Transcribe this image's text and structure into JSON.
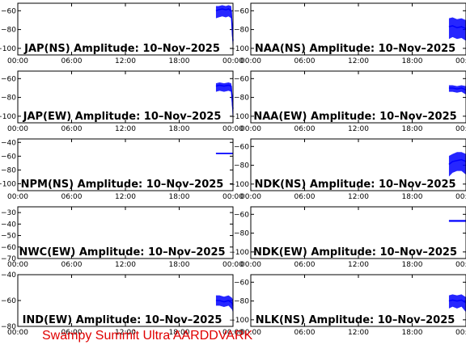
{
  "footer_text": "Swampy Summit Ultra AARDDVARK",
  "chart_data": [
    {
      "type": "line",
      "title": "JAP(NS) Amplitude: 10–Nov–2025",
      "x_ticks": [
        "00:00",
        "06:00",
        "12:00",
        "18:00",
        "00:00"
      ],
      "xlim": [
        0,
        24
      ],
      "yticks": [
        -100,
        -80,
        -60
      ],
      "ylim": [
        -107,
        -52
      ],
      "color": "#0000ff",
      "series": [
        {
          "x": [
            22.1,
            22.4,
            22.8,
            23.2,
            23.5,
            23.8,
            23.95,
            24.0
          ],
          "y": [
            -60,
            -59,
            -58,
            -59,
            -58,
            -60,
            -86,
            -92
          ],
          "low": [
            -68,
            -67,
            -66,
            -67,
            -66,
            -68,
            -96,
            -98
          ],
          "high": [
            -55,
            -55,
            -54,
            -55,
            -54,
            -55,
            -80,
            -86
          ]
        }
      ]
    },
    {
      "type": "line",
      "title": "NAA(NS) Amplitude: 10–Nov–2025",
      "x_ticks": [
        "00:00",
        "06:00",
        "12:00",
        "18:00",
        "00:00"
      ],
      "xlim": [
        0,
        24
      ],
      "yticks": [
        -100,
        -80,
        -60
      ],
      "ylim": [
        -107,
        -52
      ],
      "color": "#0000ff",
      "series": [
        {
          "x": [
            22.1,
            22.5,
            23.0,
            23.5,
            24.0
          ],
          "y": [
            -77,
            -76,
            -78,
            -77,
            -79
          ],
          "low": [
            -90,
            -88,
            -90,
            -89,
            -92
          ],
          "high": [
            -68,
            -67,
            -69,
            -68,
            -70
          ]
        }
      ]
    },
    {
      "type": "line",
      "title": "JAP(EW) Amplitude: 10–Nov–2025",
      "x_ticks": [
        "00:00",
        "06:00",
        "12:00",
        "18:00",
        "00:00"
      ],
      "xlim": [
        0,
        24
      ],
      "yticks": [
        -100,
        -80,
        -60
      ],
      "ylim": [
        -107,
        -52
      ],
      "color": "#0000ff",
      "series": [
        {
          "x": [
            22.1,
            22.5,
            23.0,
            23.5,
            23.8,
            23.95,
            24.0
          ],
          "y": [
            -68,
            -67,
            -68,
            -67,
            -68,
            -88,
            -92
          ],
          "low": [
            -74,
            -73,
            -74,
            -73,
            -74,
            -100,
            -102
          ],
          "high": [
            -65,
            -64,
            -65,
            -64,
            -65,
            -80,
            -84
          ]
        }
      ]
    },
    {
      "type": "line",
      "title": "NAA(EW) Amplitude: 10–Nov–2025",
      "x_ticks": [
        "00:00",
        "06:00",
        "12:00",
        "18:00",
        "00:00"
      ],
      "xlim": [
        0,
        24
      ],
      "yticks": [
        -100,
        -80,
        -60
      ],
      "ylim": [
        -107,
        -52
      ],
      "color": "#0000ff",
      "series": [
        {
          "x": [
            22.1,
            22.5,
            23.0,
            23.5,
            24.0
          ],
          "y": [
            -70,
            -70,
            -71,
            -70,
            -72
          ],
          "low": [
            -74,
            -74,
            -75,
            -74,
            -77
          ],
          "high": [
            -67,
            -67,
            -68,
            -67,
            -68
          ]
        }
      ]
    },
    {
      "type": "line",
      "title": "NPM(NS) Amplitude: 10–Nov–2025",
      "x_ticks": [
        "00:00",
        "06:00",
        "12:00",
        "18:00",
        "00:00"
      ],
      "xlim": [
        0,
        24
      ],
      "yticks": [
        -100,
        -80,
        -60,
        -40
      ],
      "ylim": [
        -110,
        -35
      ],
      "color": "#0000ff",
      "series": [
        {
          "x": [
            22.1,
            23.0,
            24.0
          ],
          "y": [
            -56,
            -56,
            -56
          ],
          "low": [
            -57,
            -57,
            -57
          ],
          "high": [
            -55,
            -55,
            -55
          ]
        }
      ]
    },
    {
      "type": "line",
      "title": "NDK(NS) Amplitude: 10–Nov–2025",
      "x_ticks": [
        "00:00",
        "06:00",
        "12:00",
        "18:00",
        "00:00"
      ],
      "xlim": [
        0,
        24
      ],
      "yticks": [
        -100,
        -80,
        -60
      ],
      "ylim": [
        -107,
        -52
      ],
      "color": "#0000ff",
      "series": [
        {
          "x": [
            22.1,
            22.5,
            23.0,
            23.5,
            24.0
          ],
          "y": [
            -79,
            -76,
            -75,
            -74,
            -76
          ],
          "low": [
            -92,
            -88,
            -86,
            -86,
            -90
          ],
          "high": [
            -70,
            -68,
            -66,
            -66,
            -68
          ]
        }
      ]
    },
    {
      "type": "line",
      "title": "NWC(EW) Amplitude: 10–Nov–2025",
      "x_ticks": [
        "00:00",
        "06:00",
        "12:00",
        "18:00",
        "00:00"
      ],
      "xlim": [
        0,
        24
      ],
      "yticks": [
        -70,
        -60,
        -50,
        -40,
        -30
      ],
      "ylim": [
        -70,
        -25
      ],
      "color": "#0000ff",
      "series": []
    },
    {
      "type": "line",
      "title": "NDK(EW) Amplitude: 10–Nov–2025",
      "x_ticks": [
        "00:00",
        "06:00",
        "12:00",
        "18:00",
        "00:00"
      ],
      "xlim": [
        0,
        24
      ],
      "yticks": [
        -100,
        -80,
        -60
      ],
      "ylim": [
        -107,
        -52
      ],
      "color": "#0000ff",
      "series": [
        {
          "x": [
            22.1,
            23.0,
            24.0
          ],
          "y": [
            -67,
            -67,
            -67
          ],
          "low": [
            -68,
            -68,
            -68
          ],
          "high": [
            -66,
            -66,
            -66
          ]
        }
      ]
    },
    {
      "type": "line",
      "title": "IND(EW) Amplitude: 10–Nov–2025",
      "x_ticks": [
        "00:00",
        "06:00",
        "12:00",
        "18:00",
        "00:00"
      ],
      "xlim": [
        0,
        24
      ],
      "yticks": [
        -80,
        -60,
        -40
      ],
      "ylim": [
        -80,
        -40
      ],
      "color": "#0000ff",
      "series": [
        {
          "x": [
            22.1,
            22.5,
            23.0,
            23.5,
            23.9,
            24.0
          ],
          "y": [
            -60,
            -60,
            -61,
            -60,
            -62,
            -64
          ],
          "low": [
            -64,
            -64,
            -65,
            -64,
            -67,
            -70
          ],
          "high": [
            -56,
            -56,
            -57,
            -56,
            -58,
            -60
          ]
        }
      ]
    },
    {
      "type": "line",
      "title": "NLK(NS) Amplitude: 10–Nov–2025",
      "x_ticks": [
        "00:00",
        "06:00",
        "12:00",
        "18:00",
        "00:00"
      ],
      "xlim": [
        0,
        24
      ],
      "yticks": [
        -100,
        -80,
        -60
      ],
      "ylim": [
        -107,
        -52
      ],
      "color": "#0000ff",
      "series": [
        {
          "x": [
            22.1,
            22.5,
            23.0,
            23.5,
            24.0
          ],
          "y": [
            -80,
            -79,
            -80,
            -79,
            -82
          ],
          "low": [
            -88,
            -86,
            -88,
            -86,
            -92
          ],
          "high": [
            -74,
            -73,
            -74,
            -73,
            -76
          ]
        }
      ]
    }
  ]
}
